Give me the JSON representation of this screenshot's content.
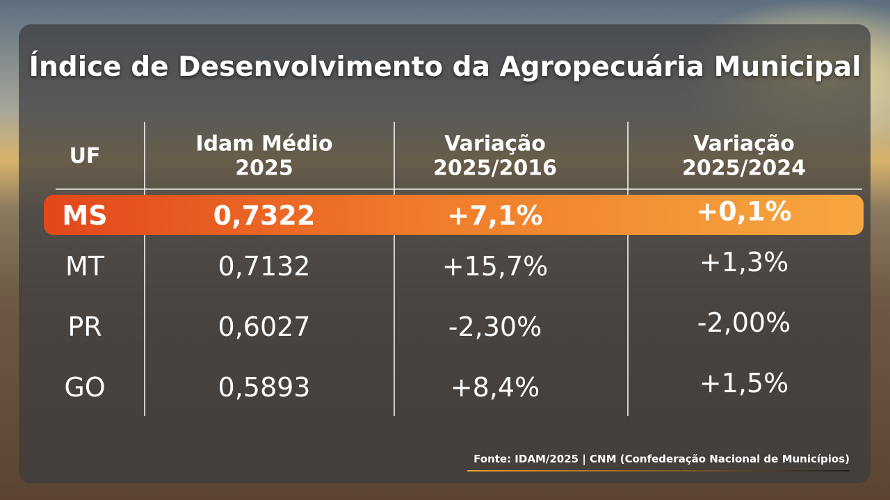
{
  "title": "Índice de Desenvolvimento da Agropecuária Municipal",
  "table": {
    "header": [
      [
        "UF"
      ],
      [
        "Idam Médio",
        "2025"
      ],
      [
        "Variação",
        "2025/2016"
      ],
      [
        "Variação",
        "2025/2024"
      ]
    ],
    "rows": [
      [
        "MS",
        "0,7322",
        "+7,1%",
        "+0,1%"
      ],
      [
        "MT",
        "0,7132",
        "+15,7%",
        "+1,3%"
      ],
      [
        "PR",
        "0,6027",
        "-2,30%",
        "-2,00%"
      ],
      [
        "GO",
        "0,5893",
        "+8,4%",
        "+1,5%"
      ]
    ]
  },
  "source": "Fonte: IDAM/2025 | CNM (Confederação Nacional de Municípios)"
}
